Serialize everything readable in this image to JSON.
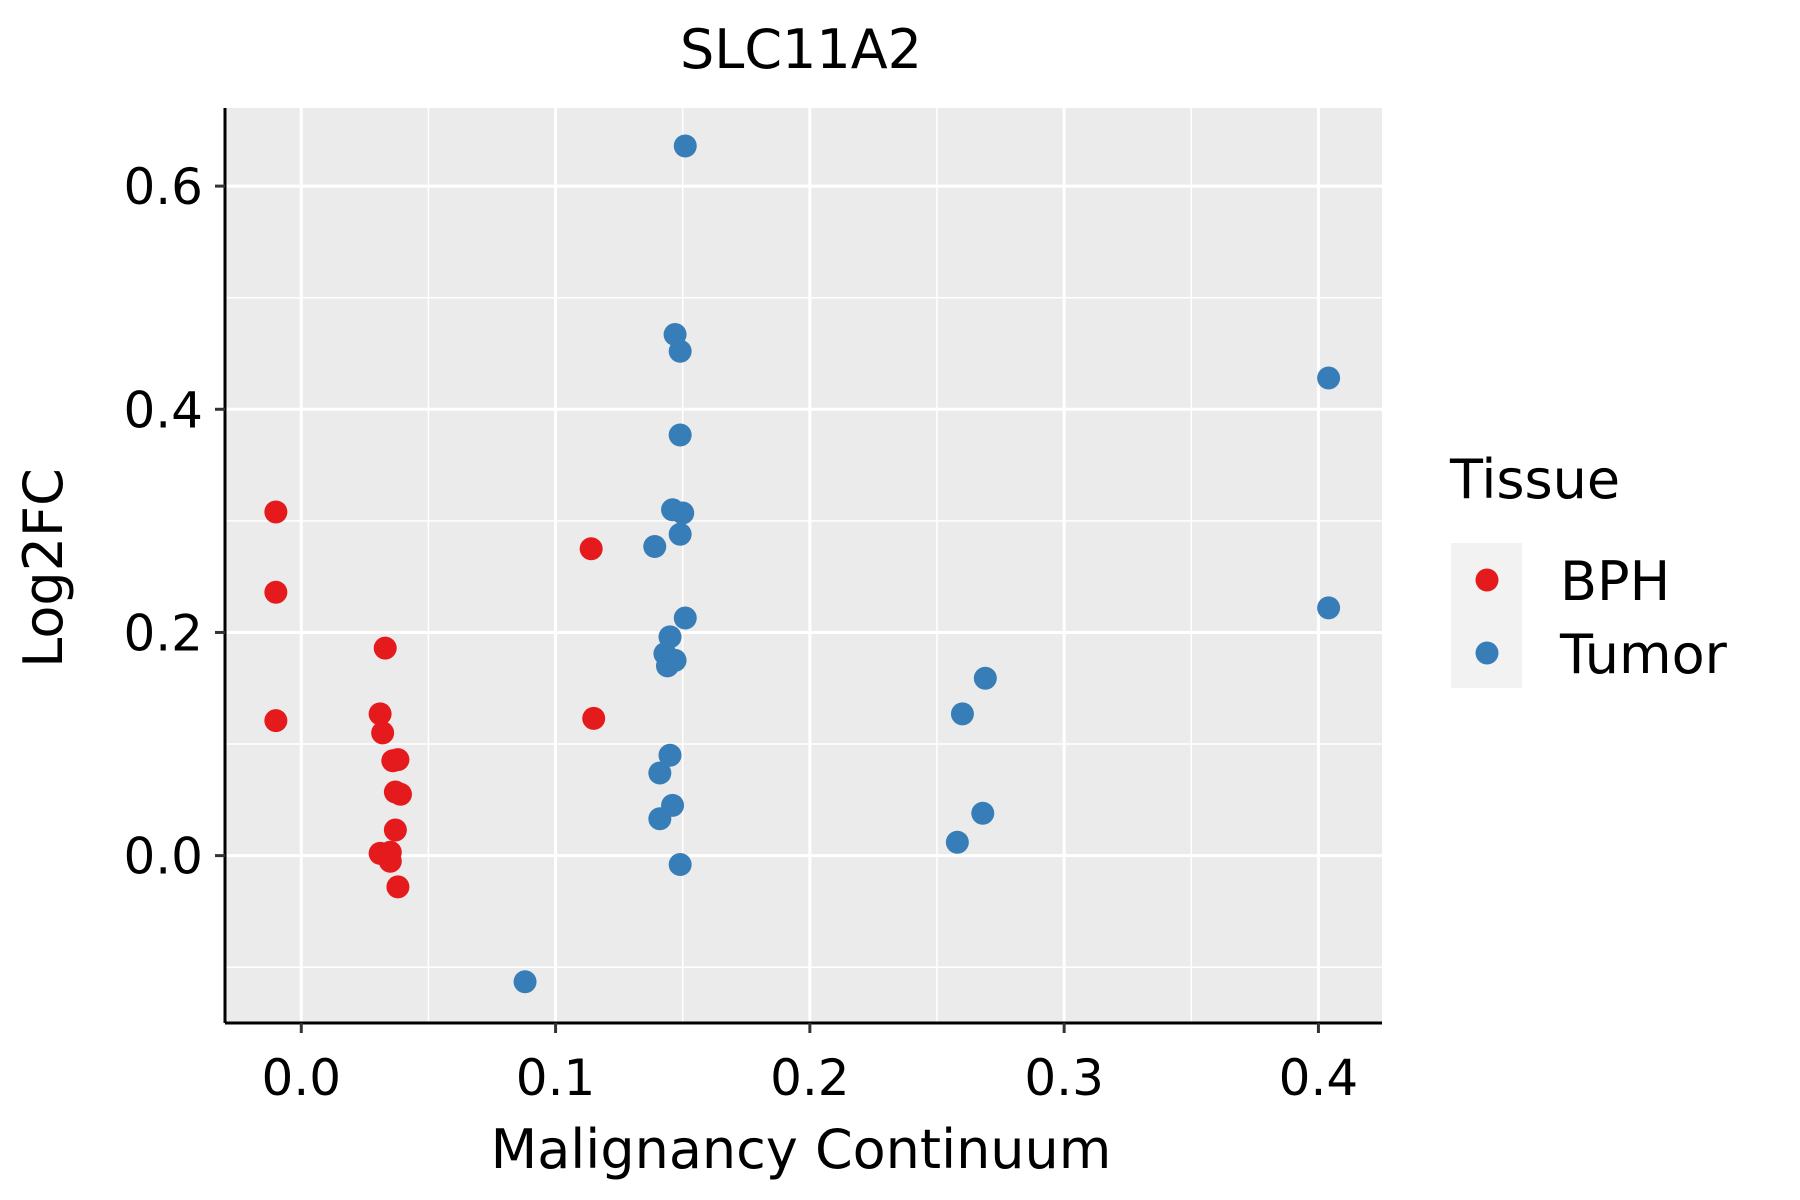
{
  "chart_data": {
    "type": "scatter",
    "title": "SLC11A2",
    "xlabel": "Malignancy Continuum",
    "ylabel": "Log2FC",
    "xlim": [
      -0.03,
      0.425
    ],
    "ylim": [
      -0.15,
      0.67
    ],
    "xticks": [
      0.0,
      0.1,
      0.2,
      0.3,
      0.4
    ],
    "xtick_labels": [
      "0.0",
      "0.1",
      "0.2",
      "0.3",
      "0.4"
    ],
    "yticks": [
      0.0,
      0.2,
      0.4,
      0.6
    ],
    "ytick_labels": [
      "0.0",
      "0.2",
      "0.4",
      "0.6"
    ],
    "grid": true,
    "legend": {
      "title": "Tissue",
      "position": "right",
      "entries": [
        {
          "name": "BPH",
          "color": "#E41A1C"
        },
        {
          "name": "Tumor",
          "color": "#377EB8"
        }
      ]
    },
    "series": [
      {
        "name": "BPH",
        "color": "#E41A1C",
        "points": [
          {
            "x": -0.01,
            "y": 0.308
          },
          {
            "x": -0.01,
            "y": 0.236
          },
          {
            "x": -0.01,
            "y": 0.121
          },
          {
            "x": 0.033,
            "y": 0.186
          },
          {
            "x": 0.031,
            "y": 0.127
          },
          {
            "x": 0.032,
            "y": 0.11
          },
          {
            "x": 0.036,
            "y": 0.085
          },
          {
            "x": 0.038,
            "y": 0.086
          },
          {
            "x": 0.037,
            "y": 0.057
          },
          {
            "x": 0.039,
            "y": 0.055
          },
          {
            "x": 0.037,
            "y": 0.023
          },
          {
            "x": 0.031,
            "y": 0.002
          },
          {
            "x": 0.035,
            "y": 0.003
          },
          {
            "x": 0.035,
            "y": -0.005
          },
          {
            "x": 0.038,
            "y": -0.028
          },
          {
            "x": 0.114,
            "y": 0.275
          },
          {
            "x": 0.115,
            "y": 0.123
          }
        ]
      },
      {
        "name": "Tumor",
        "color": "#377EB8",
        "points": [
          {
            "x": 0.151,
            "y": 0.636
          },
          {
            "x": 0.147,
            "y": 0.467
          },
          {
            "x": 0.149,
            "y": 0.452
          },
          {
            "x": 0.149,
            "y": 0.377
          },
          {
            "x": 0.146,
            "y": 0.31
          },
          {
            "x": 0.15,
            "y": 0.307
          },
          {
            "x": 0.149,
            "y": 0.288
          },
          {
            "x": 0.139,
            "y": 0.277
          },
          {
            "x": 0.151,
            "y": 0.213
          },
          {
            "x": 0.145,
            "y": 0.196
          },
          {
            "x": 0.143,
            "y": 0.181
          },
          {
            "x": 0.147,
            "y": 0.175
          },
          {
            "x": 0.144,
            "y": 0.17
          },
          {
            "x": 0.145,
            "y": 0.09
          },
          {
            "x": 0.141,
            "y": 0.074
          },
          {
            "x": 0.146,
            "y": 0.045
          },
          {
            "x": 0.141,
            "y": 0.033
          },
          {
            "x": 0.149,
            "y": -0.008
          },
          {
            "x": 0.088,
            "y": -0.113
          },
          {
            "x": 0.269,
            "y": 0.159
          },
          {
            "x": 0.26,
            "y": 0.127
          },
          {
            "x": 0.268,
            "y": 0.038
          },
          {
            "x": 0.258,
            "y": 0.012
          },
          {
            "x": 0.404,
            "y": 0.428
          },
          {
            "x": 0.404,
            "y": 0.222
          }
        ]
      }
    ]
  }
}
